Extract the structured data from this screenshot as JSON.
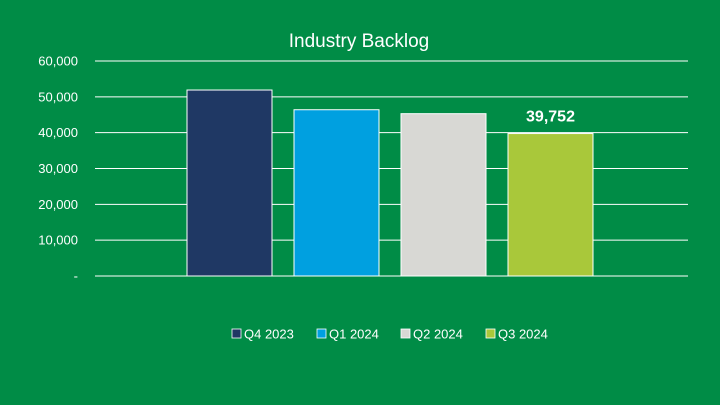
{
  "chart_data": {
    "type": "bar",
    "title": "Industry Backlog",
    "xlabel": "",
    "ylabel": "",
    "ylim": [
      0,
      60000
    ],
    "yticks": [
      0,
      10000,
      20000,
      30000,
      40000,
      50000,
      60000
    ],
    "ytick_labels": [
      "-",
      "10,000",
      "20,000",
      "30,000",
      "40,000",
      "50,000",
      "60,000"
    ],
    "grid": true,
    "legend_position": "bottom",
    "series": [
      {
        "name": "Q4 2023",
        "value": 51900,
        "color": "#1f3864"
      },
      {
        "name": "Q1 2024",
        "value": 46400,
        "color": "#00a0e0"
      },
      {
        "name": "Q2 2024",
        "value": 45300,
        "color": "#d8d8d4"
      },
      {
        "name": "Q3 2024",
        "value": 39752,
        "color": "#a9c83a",
        "data_label": "39,752"
      }
    ]
  },
  "colors": {
    "background": "#008c46",
    "gridline": "#ffffff",
    "text": "#ffffff"
  }
}
